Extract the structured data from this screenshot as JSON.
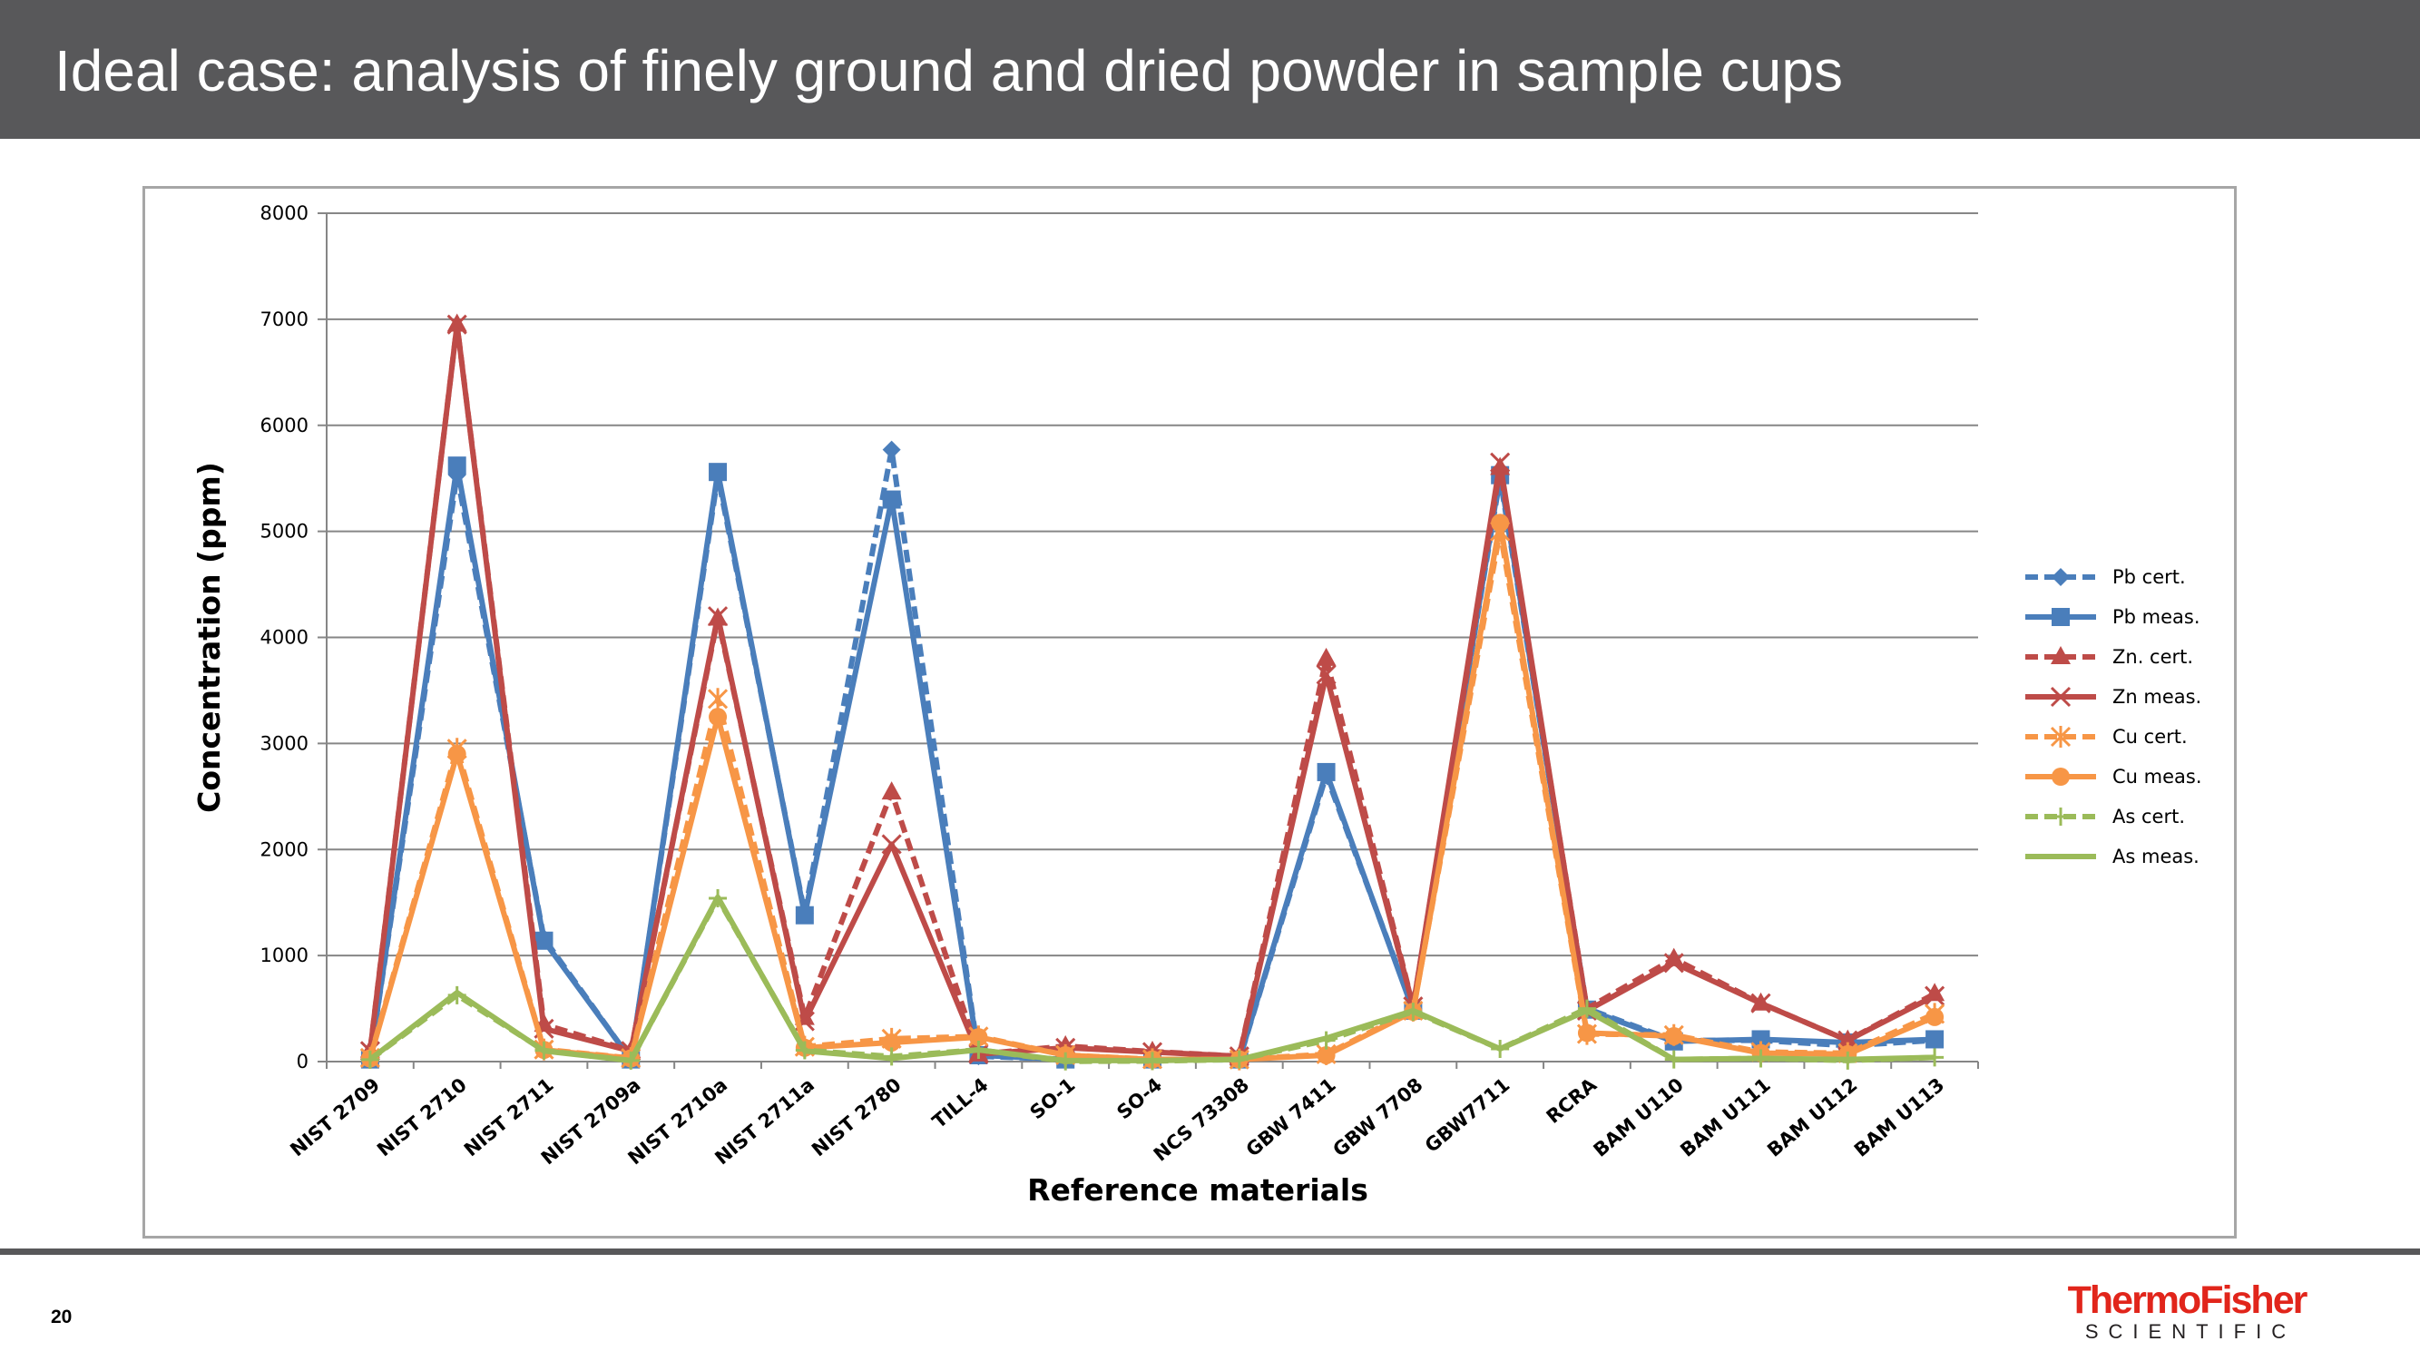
{
  "slide": {
    "title": "Ideal case: analysis of finely ground and dried powder in sample cups",
    "page_number": "20",
    "logo": {
      "brand": "ThermoFisher",
      "sub": "SCIENTIFIC"
    }
  },
  "colors": {
    "title_bar": "#58585a",
    "pb": "#4a7ebb",
    "zn": "#be4b48",
    "cu": "#f79646",
    "as": "#9bbb59",
    "logo_red": "#e1251b"
  },
  "chart_data": {
    "type": "line",
    "title": "",
    "xlabel": "Reference materials",
    "ylabel": "Concentration (ppm)",
    "ylim": [
      0,
      8000
    ],
    "yticks": [
      "0",
      "1000",
      "2000",
      "3000",
      "4000",
      "5000",
      "6000",
      "7000",
      "8000"
    ],
    "grid": true,
    "legend_position": "right",
    "categories": [
      "NIST 2709",
      "NIST 2710",
      "NIST 2711",
      "NIST 2709a",
      "NIST 2710a",
      "NIST 2711a",
      "NIST 2780",
      "TILL-4",
      "SO-1",
      "SO-4",
      "NCS 73308",
      "GBW 7411",
      "GBW 7708",
      "GBW7711",
      "RCRA",
      "BAM U110",
      "BAM U111",
      "BAM U112",
      "BAM U113"
    ],
    "series": [
      {
        "name": "Pb cert.",
        "color": "#4a7ebb",
        "dashed": true,
        "marker": "diamond",
        "values": [
          19,
          5532,
          1162,
          17,
          5520,
          1400,
          5770,
          50,
          21,
          22,
          15,
          2700,
          500,
          5500,
          500,
          200,
          200,
          150,
          200
        ]
      },
      {
        "name": "Pb meas.",
        "color": "#4a7ebb",
        "dashed": false,
        "marker": "square",
        "values": [
          20,
          5620,
          1140,
          20,
          5560,
          1380,
          5300,
          60,
          20,
          20,
          20,
          2730,
          480,
          5530,
          490,
          190,
          210,
          180,
          210
        ]
      },
      {
        "name": "Zn. cert.",
        "color": "#be4b48",
        "dashed": true,
        "marker": "triangle",
        "values": [
          106,
          6952,
          350,
          103,
          4180,
          414,
          2540,
          70,
          146,
          94,
          51,
          3800,
          520,
          5600,
          500,
          970,
          550,
          200,
          640
        ]
      },
      {
        "name": "Zn meas.",
        "color": "#be4b48",
        "dashed": false,
        "marker": "x",
        "values": [
          100,
          6950,
          310,
          100,
          4200,
          380,
          2050,
          70,
          130,
          90,
          50,
          3650,
          520,
          5650,
          480,
          930,
          550,
          200,
          620
        ]
      },
      {
        "name": "Cu cert.",
        "color": "#f79646",
        "dashed": true,
        "marker": "asterisk",
        "values": [
          35,
          2950,
          114,
          33,
          3420,
          140,
          215,
          237,
          61,
          22,
          20,
          70,
          480,
          5000,
          260,
          250,
          90,
          80,
          450
        ]
      },
      {
        "name": "Cu meas.",
        "color": "#f79646",
        "dashed": false,
        "marker": "circle",
        "values": [
          30,
          2900,
          110,
          30,
          3250,
          130,
          180,
          230,
          60,
          20,
          20,
          60,
          470,
          5080,
          270,
          240,
          80,
          70,
          420
        ]
      },
      {
        "name": "As cert.",
        "color": "#9bbb59",
        "dashed": true,
        "marker": "plus",
        "values": [
          18,
          626,
          105,
          10,
          1540,
          107,
          48,
          111,
          2,
          5,
          20,
          200,
          470,
          120,
          500,
          20,
          30,
          10,
          40
        ]
      },
      {
        "name": "As meas.",
        "color": "#9bbb59",
        "dashed": false,
        "marker": "none",
        "values": [
          20,
          650,
          100,
          10,
          1550,
          100,
          30,
          110,
          10,
          10,
          20,
          220,
          480,
          120,
          480,
          20,
          30,
          20,
          40
        ]
      }
    ]
  }
}
